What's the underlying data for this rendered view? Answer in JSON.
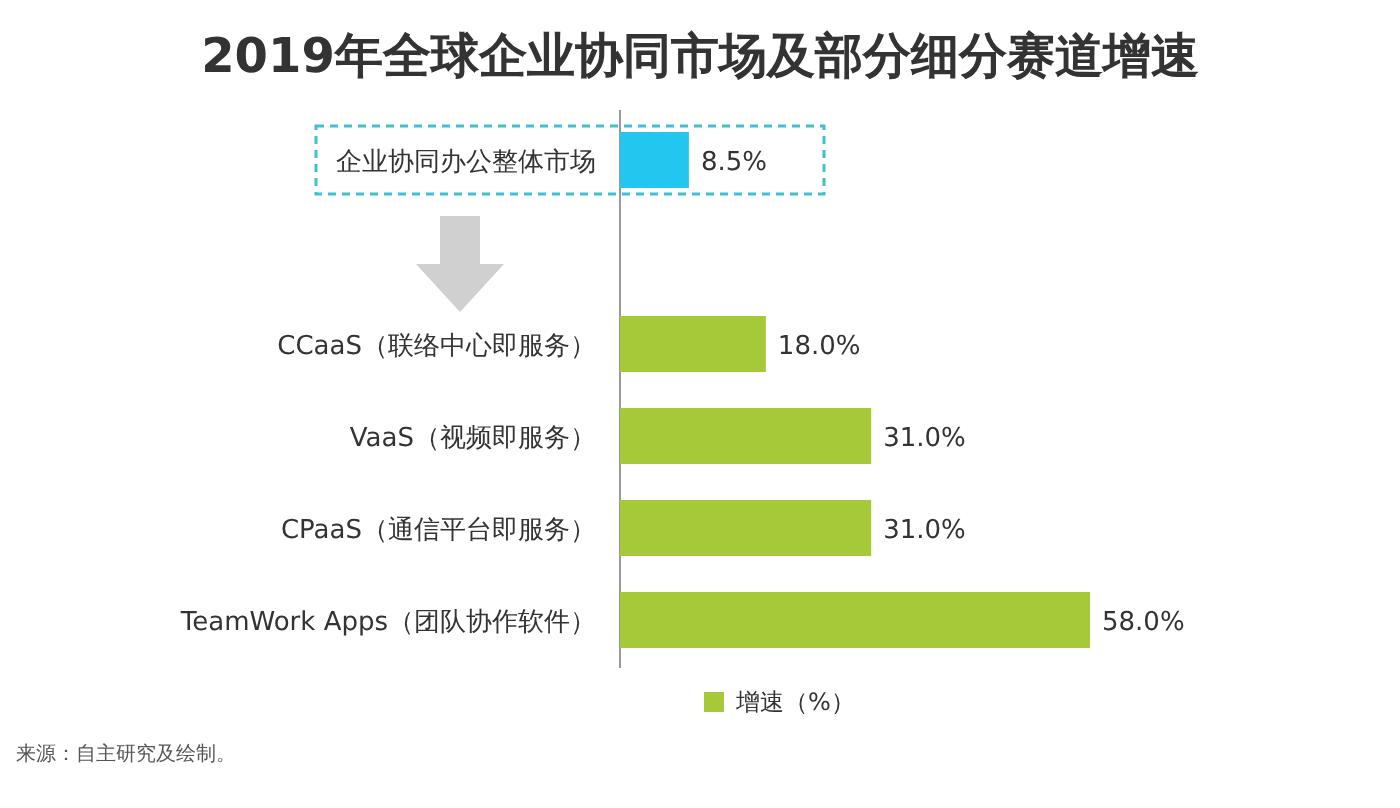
{
  "chart_data": {
    "type": "bar",
    "orientation": "horizontal",
    "title": "2019年全球企业协同市场及部分细分赛道增速",
    "categories": [
      "企业协同办公整体市场",
      "CCaaS（联络中心即服务）",
      "VaaS（视频即服务）",
      "CPaaS（通信平台即服务）",
      "TeamWork Apps（团队协作软件）"
    ],
    "series": [
      {
        "name": "增速（%）",
        "color": "#a5c939",
        "colors": [
          "#22c7ef",
          "#a5c939",
          "#a5c939",
          "#a5c939",
          "#a5c939"
        ],
        "values": [
          8.5,
          18.0,
          31.0,
          31.0,
          58.0
        ],
        "value_labels": [
          "8.5%",
          "18.0%",
          "31.0%",
          "31.0%",
          "58.0%"
        ]
      }
    ],
    "legend": "bottom",
    "annotations": [
      "来源：自主研究及绘制。"
    ]
  }
}
